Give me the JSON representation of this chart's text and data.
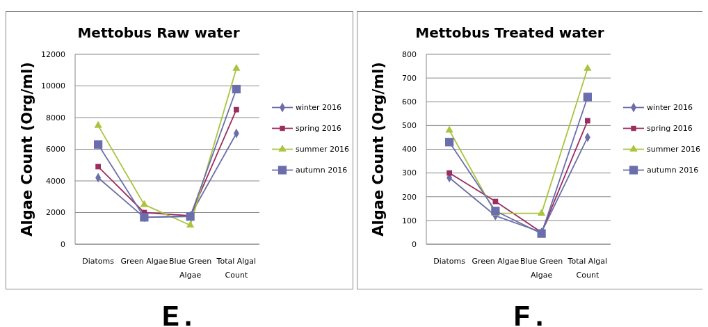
{
  "chart_data": [
    {
      "type": "line",
      "title": "Mettobus Raw water",
      "ylabel": "Algae Count (Org/ml)",
      "categories": [
        "Diatoms",
        "Green Algae",
        "Blue Green Algae",
        "Total Algal Count"
      ],
      "ylim": [
        0,
        12000
      ],
      "yticks": [
        0,
        2000,
        4000,
        6000,
        8000,
        10000,
        12000
      ],
      "grid": "y",
      "legend": "right",
      "annotations": [
        "E."
      ],
      "series": [
        {
          "name": "winter 2016",
          "color": "#6b6ea8",
          "marker": "diamond",
          "values": [
            4200,
            1700,
            1800,
            7000
          ]
        },
        {
          "name": "spring 2016",
          "color": "#9b2d5f",
          "marker": "square",
          "values": [
            4900,
            2000,
            1800,
            8500
          ]
        },
        {
          "name": "summer 2016",
          "color": "#a9c43e",
          "marker": "triangle",
          "values": [
            7500,
            2500,
            1200,
            11100
          ]
        },
        {
          "name": "autumn 2016",
          "color": "#6b6eac",
          "marker": "square",
          "values": [
            6300,
            1700,
            1750,
            9800
          ]
        }
      ]
    },
    {
      "type": "line",
      "title": "Mettobus Treated water",
      "ylabel": "Algae Count (Org/ml)",
      "categories": [
        "Diatoms",
        "Green Algae",
        "Blue Green Algae",
        "Total Algal Count"
      ],
      "ylim": [
        0,
        800
      ],
      "yticks": [
        0,
        100,
        200,
        300,
        400,
        500,
        600,
        700,
        800
      ],
      "grid": "y",
      "legend": "right",
      "annotations": [
        "F."
      ],
      "series": [
        {
          "name": "winter 2016",
          "color": "#6b6ea8",
          "marker": "diamond",
          "values": [
            280,
            120,
            50,
            450
          ]
        },
        {
          "name": "spring 2016",
          "color": "#9b2d5f",
          "marker": "square",
          "values": [
            300,
            180,
            50,
            520
          ]
        },
        {
          "name": "summer 2016",
          "color": "#a9c43e",
          "marker": "triangle",
          "values": [
            480,
            130,
            130,
            740
          ]
        },
        {
          "name": "autumn 2016",
          "color": "#6b6eac",
          "marker": "square",
          "values": [
            430,
            140,
            45,
            620
          ]
        }
      ]
    }
  ]
}
